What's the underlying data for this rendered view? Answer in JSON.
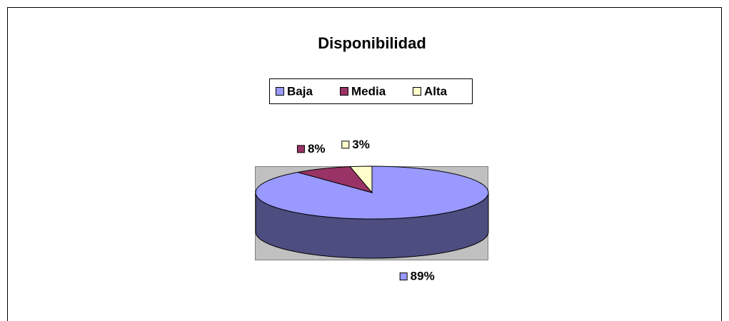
{
  "chart_data": {
    "type": "pie",
    "title": "Disponibilidad",
    "categories": [
      "Baja",
      "Media",
      "Alta"
    ],
    "values": [
      89,
      8,
      3
    ],
    "value_labels": [
      "89%",
      "8%",
      "3%"
    ],
    "colors": [
      "#9999ff",
      "#993366",
      "#ffffcc"
    ],
    "legend": "top"
  }
}
